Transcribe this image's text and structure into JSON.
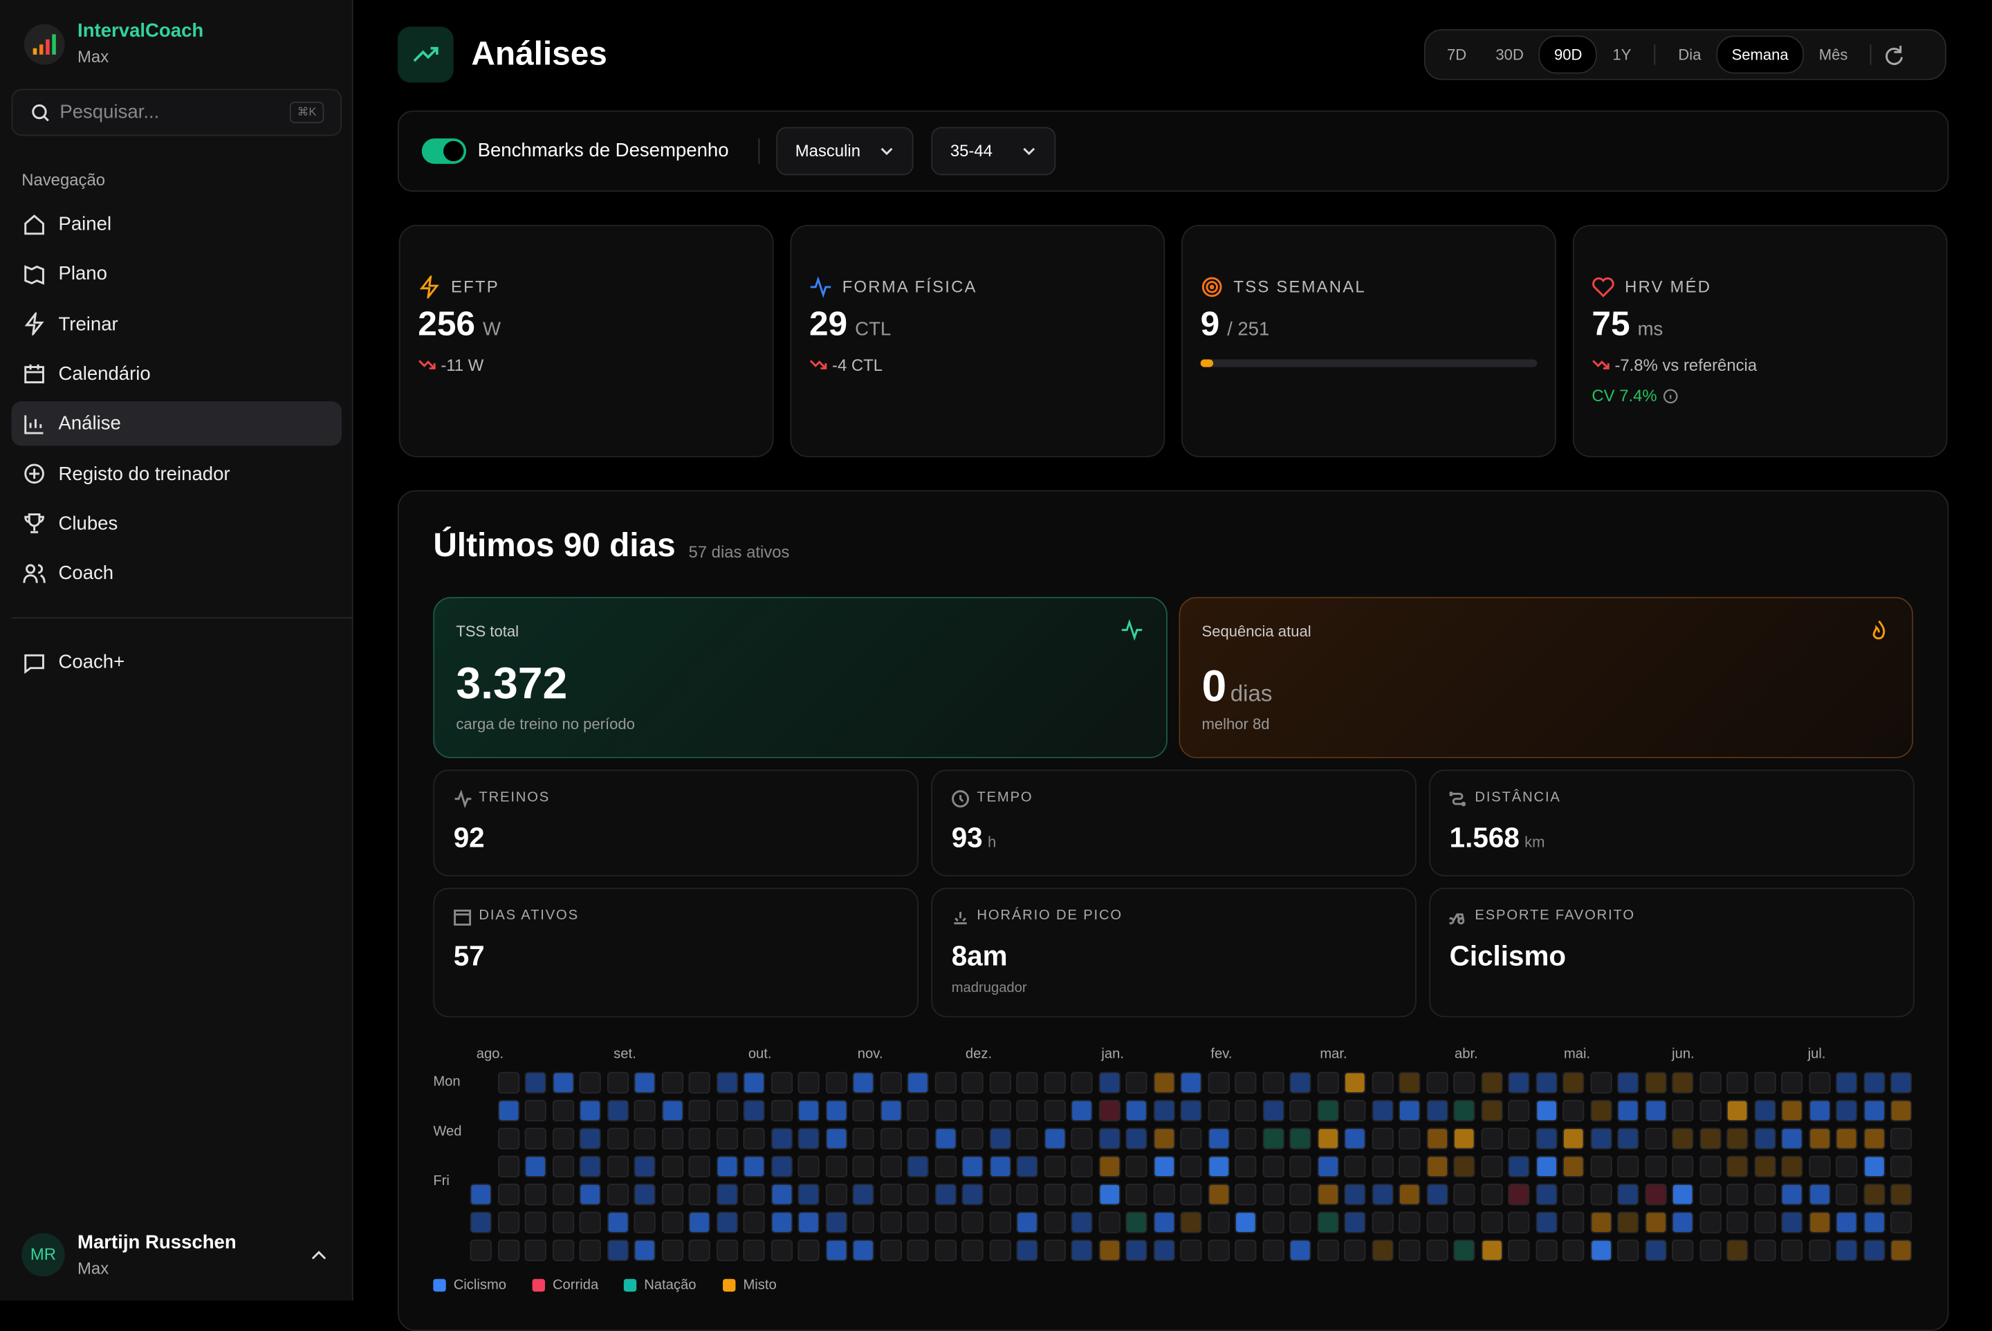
{
  "sidebar": {
    "app_name": "IntervalCoach",
    "app_user": "Max",
    "search_placeholder": "Pesquisar...",
    "search_shortcut": "⌘K",
    "nav_heading": "Navegação",
    "nav": [
      "Painel",
      "Plano",
      "Treinar",
      "Calendário",
      "Análise",
      "Registo do treinador",
      "Clubes",
      "Coach"
    ],
    "active_nav": "Análise",
    "extra": [
      "Coach+"
    ],
    "profile": {
      "initials": "MR",
      "name": "Martijn Russchen",
      "sub": "Max"
    }
  },
  "header": {
    "title": "Análises",
    "ranges": [
      "7D",
      "30D",
      "90D",
      "1Y"
    ],
    "active_range": "90D",
    "granularity": [
      "Dia",
      "Semana",
      "Mês"
    ],
    "active_granularity": "Semana"
  },
  "benchmarks": {
    "label": "Benchmarks de Desempenho",
    "enabled": true,
    "gender": "Masculin",
    "age": "35-44"
  },
  "metrics": [
    {
      "label": "EFTP",
      "value": 256,
      "unit": "W",
      "delta": "-11 W"
    },
    {
      "label": "FORMA FÍSICA",
      "value": 29,
      "unit": "CTL",
      "delta": "-4 CTL"
    },
    {
      "label": "TSS SEMANAL",
      "value": 9,
      "target": 251
    },
    {
      "label": "HRV MÉD",
      "value": 75,
      "unit": "ms",
      "delta": "-7.8% vs referência",
      "cv": "CV 7.4%"
    }
  ],
  "summary": {
    "title": "Últimos 90 dias",
    "subtitle": "57 dias ativos",
    "tss": {
      "label": "TSS total",
      "value": "3.372",
      "caption": "carga de treino no período"
    },
    "streak": {
      "label": "Sequência atual",
      "value": 0,
      "unit": "dias",
      "caption": "melhor 8d"
    },
    "stats": [
      {
        "label": "TREINOS",
        "value": 92
      },
      {
        "label": "TEMPO",
        "value": 93,
        "unit": "h"
      },
      {
        "label": "DISTÂNCIA",
        "value": "1.568",
        "unit": "km"
      },
      {
        "label": "DIAS ATIVOS",
        "value": 57
      },
      {
        "label": "HORÁRIO DE PICO",
        "value": "8am",
        "caption": "madrugador"
      },
      {
        "label": "ESPORTE FAVORITO",
        "value": "Ciclismo"
      }
    ]
  },
  "heatmap": {
    "months": [
      "ago.",
      "set.",
      "out.",
      "nov.",
      "dez.",
      "jan.",
      "fev.",
      "mar.",
      "abr.",
      "mai.",
      "jun.",
      "jul."
    ],
    "days": [
      "Mon",
      "Wed",
      "Fri"
    ],
    "legend": [
      {
        "name": "Ciclismo",
        "color": "#3b82f6"
      },
      {
        "name": "Corrida",
        "color": "#f43f5e"
      },
      {
        "name": "Natação",
        "color": "#14b8a6"
      },
      {
        "name": "Misto",
        "color": "#f59e0b"
      }
    ]
  }
}
